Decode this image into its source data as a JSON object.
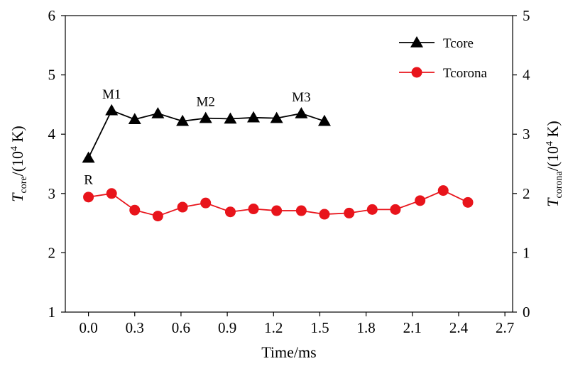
{
  "chart_data": {
    "type": "line",
    "xlabel": "Time/ms",
    "ylabel": {
      "main": "T",
      "sub": "core",
      "rest": "/(10",
      "sup": "4",
      "unit": " K)"
    },
    "ylabel_right": {
      "main": "T",
      "sub": "corona",
      "rest": "/(10",
      "sup": "4",
      "unit": " K)"
    },
    "xlim": [
      -0.15,
      2.75
    ],
    "ylim": [
      1,
      6
    ],
    "ylim_right": [
      0,
      5
    ],
    "xticks": [
      "0.0",
      "0.3",
      "0.6",
      "0.9",
      "1.2",
      "1.5",
      "1.8",
      "2.1",
      "2.4",
      "2.7"
    ],
    "yticks": [
      "1",
      "2",
      "3",
      "4",
      "5",
      "6"
    ],
    "yticks_right": [
      "0",
      "1",
      "2",
      "3",
      "4",
      "5"
    ],
    "legend_position": "top-right",
    "grid": false,
    "series": [
      {
        "name": "Tcore",
        "axis": "left",
        "color": "#000000",
        "marker": "triangle",
        "x": [
          0.0,
          0.15,
          0.3,
          0.45,
          0.61,
          0.76,
          0.92,
          1.07,
          1.22,
          1.38,
          1.53
        ],
        "y": [
          3.6,
          4.4,
          4.25,
          4.35,
          4.22,
          4.27,
          4.26,
          4.28,
          4.27,
          4.35,
          4.22
        ]
      },
      {
        "name": "Tcorona",
        "axis": "right",
        "color": "#e8141b",
        "marker": "circle",
        "x": [
          0.0,
          0.15,
          0.3,
          0.45,
          0.61,
          0.76,
          0.92,
          1.07,
          1.22,
          1.38,
          1.53,
          1.69,
          1.84,
          1.99,
          2.15,
          2.3,
          2.46
        ],
        "y": [
          1.94,
          2.0,
          1.72,
          1.62,
          1.77,
          1.84,
          1.69,
          1.74,
          1.71,
          1.71,
          1.65,
          1.67,
          1.73,
          1.73,
          1.88,
          2.05,
          1.85
        ]
      }
    ],
    "annotations": [
      {
        "text": "R",
        "x": 0.0,
        "y": 3.6,
        "placement": "below"
      },
      {
        "text": "M1",
        "x": 0.15,
        "y": 4.4,
        "placement": "above"
      },
      {
        "text": "M2",
        "x": 0.76,
        "y": 4.27,
        "placement": "above"
      },
      {
        "text": "M3",
        "x": 1.38,
        "y": 4.35,
        "placement": "above"
      }
    ]
  }
}
